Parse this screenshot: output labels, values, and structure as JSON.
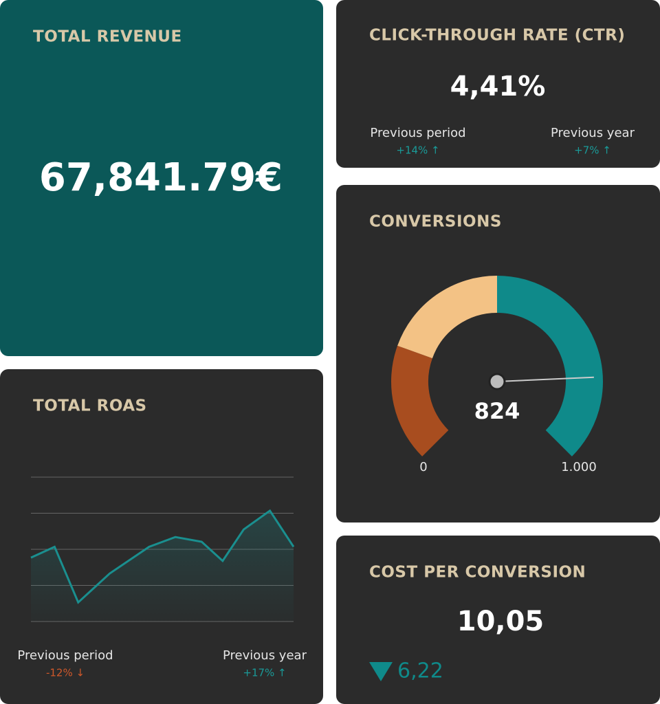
{
  "revenue": {
    "title": "TOTAL REVENUE",
    "value": "67,841.79€"
  },
  "ctr": {
    "title": "CLICK-THROUGH RATE (CTR)",
    "value": "4,41%",
    "comparisons": [
      {
        "label": "Previous period",
        "change": "+14% ↑",
        "color": "#1a9a98"
      },
      {
        "label": "Previous year",
        "change": "+7% ↑",
        "color": "#1a9a98"
      }
    ]
  },
  "conversions": {
    "title": "CONVERSIONS",
    "value": 824,
    "min": 0,
    "max": {
      "value": 1000,
      "label": "1.000"
    },
    "bands": [
      {
        "from": 0,
        "to": 240,
        "color": "#a84d1f"
      },
      {
        "from": 240,
        "to": 500,
        "color": "#f3c285"
      },
      {
        "from": 500,
        "to": 1000,
        "color": "#0f8a8a"
      }
    ]
  },
  "roas": {
    "title": "TOTAL ROAS",
    "type": "area",
    "color": "#1a8f8f",
    "x": [
      0,
      0.9,
      1.8,
      3,
      4.5,
      5.5,
      6.5,
      7.3,
      8.1,
      9.1,
      10
    ],
    "values": [
      1.77,
      2.07,
      0.53,
      1.33,
      2.07,
      2.34,
      2.21,
      1.68,
      2.55,
      3.07,
      2.07
    ],
    "xlim": [
      0,
      10
    ],
    "ylim": [
      0,
      4
    ],
    "grid_lines": [
      0,
      1,
      2,
      3,
      4
    ],
    "comparisons": [
      {
        "label": "Previous period",
        "change": "-12% ↓",
        "color": "#d0582a"
      },
      {
        "label": "Previous year",
        "change": "+17% ↑",
        "color": "#1a9a98"
      }
    ]
  },
  "cost": {
    "title": "COST PER CONVERSION",
    "value": "10,05",
    "change": "6,22",
    "color": "#0f8a8a"
  }
}
